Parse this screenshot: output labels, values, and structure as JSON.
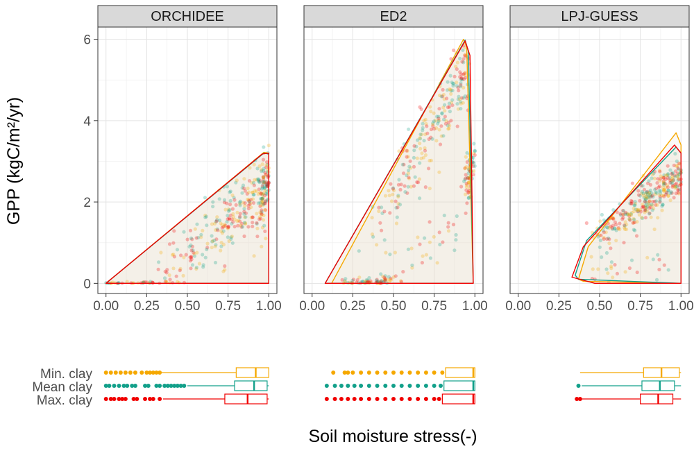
{
  "chart_data": {
    "type": "scatter",
    "ylabel": "GPP (kgC/m²/yr)",
    "xlabel": "Soil moisture stress(-)",
    "ylim": [
      -0.25,
      6.3
    ],
    "xlim": [
      -0.05,
      1.05
    ],
    "x_ticks": [
      0.0,
      0.25,
      0.5,
      0.75,
      1.0
    ],
    "x_tick_labels": [
      "0.00",
      "0.25",
      "0.50",
      "0.75",
      "1.00"
    ],
    "y_ticks": [
      0,
      2,
      4,
      6
    ],
    "y_tick_labels": [
      "0",
      "2",
      "4",
      "6"
    ],
    "grid": true,
    "series_colors": {
      "Min. clay": "#f5a800",
      "Mean clay": "#12a08a",
      "Max. clay": "#f00000"
    },
    "box_rows": [
      "Min. clay",
      "Mean clay",
      "Max. clay"
    ],
    "panels": [
      {
        "name": "ORCHIDEE",
        "hulls": {
          "Min. clay": [
            [
              0.0,
              0.0
            ],
            [
              0.97,
              3.22
            ],
            [
              1.0,
              3.2
            ],
            [
              1.0,
              0.0
            ]
          ],
          "Mean clay": [
            [
              0.0,
              0.0
            ],
            [
              0.97,
              3.2
            ],
            [
              1.0,
              3.18
            ],
            [
              1.0,
              0.0
            ]
          ],
          "Max. clay": [
            [
              0.0,
              0.0
            ],
            [
              0.96,
              3.18
            ],
            [
              1.0,
              3.2
            ],
            [
              1.0,
              0.0
            ]
          ]
        },
        "point_model": {
          "lines": [
            {
              "x0": 0.3,
              "x1": 1.0,
              "y0": 0.0,
              "y1": 2.4,
              "noise": 0.4,
              "n": 280,
              "skew": 0.55
            },
            {
              "x0": 0.95,
              "x1": 1.0,
              "y0": 1.5,
              "y1": 3.0,
              "noise": 0.3,
              "n": 70,
              "skew": 1.0
            },
            {
              "x0": 0.0,
              "x1": 0.3,
              "y0": 0.0,
              "y1": 0.02,
              "noise": 0.01,
              "n": 30,
              "skew": 1.0
            }
          ]
        },
        "boxplots": {
          "Min. clay": {
            "whisker_low": 0.34,
            "q1": 0.8,
            "median": 0.92,
            "q3": 1.0,
            "whisker_high": 1.0,
            "outliers": [
              0.0,
              0.03,
              0.06,
              0.09,
              0.12,
              0.15,
              0.18,
              0.22,
              0.25,
              0.27,
              0.29,
              0.31,
              0.33
            ]
          },
          "Mean clay": {
            "whisker_low": 0.5,
            "q1": 0.79,
            "median": 0.91,
            "q3": 0.99,
            "whisker_high": 1.0,
            "outliers": [
              0.0,
              0.02,
              0.05,
              0.08,
              0.11,
              0.13,
              0.16,
              0.18,
              0.24,
              0.26,
              0.31,
              0.33,
              0.36,
              0.38,
              0.4,
              0.42,
              0.44,
              0.46,
              0.48
            ]
          },
          "Max. clay": {
            "whisker_low": 0.35,
            "q1": 0.73,
            "median": 0.87,
            "q3": 0.99,
            "whisker_high": 1.0,
            "outliers": [
              0.0,
              0.03,
              0.05,
              0.08,
              0.1,
              0.12,
              0.17,
              0.19,
              0.24,
              0.27,
              0.29,
              0.33
            ]
          }
        }
      },
      {
        "name": "ED2",
        "hulls": {
          "Min. clay": [
            [
              0.12,
              0.0
            ],
            [
              0.93,
              6.0
            ],
            [
              0.95,
              5.8
            ],
            [
              0.99,
              0.0
            ]
          ],
          "Mean clay": [
            [
              0.08,
              0.0
            ],
            [
              0.94,
              5.98
            ],
            [
              0.96,
              5.7
            ],
            [
              0.99,
              0.0
            ]
          ],
          "Max. clay": [
            [
              0.08,
              0.0
            ],
            [
              0.94,
              5.96
            ],
            [
              0.97,
              5.6
            ],
            [
              0.99,
              0.0
            ]
          ]
        },
        "point_model": {
          "lines": [
            {
              "x0": 0.25,
              "x1": 0.96,
              "y0": 0.4,
              "y1": 5.2,
              "noise": 0.45,
              "n": 240,
              "skew": 0.5
            },
            {
              "x0": 0.95,
              "x1": 0.99,
              "y0": 2.2,
              "y1": 3.2,
              "noise": 0.2,
              "n": 80,
              "skew": 1.0
            },
            {
              "x0": 0.2,
              "x1": 0.5,
              "y0": 0.0,
              "y1": 0.1,
              "noise": 0.05,
              "n": 60,
              "skew": 1.0
            },
            {
              "x0": 0.4,
              "x1": 0.9,
              "y0": 0.1,
              "y1": 1.2,
              "noise": 0.35,
              "n": 40,
              "skew": 1.0
            }
          ]
        },
        "boxplots": {
          "Min. clay": {
            "whisker_low": 0.82,
            "q1": 0.82,
            "median": 0.99,
            "q3": 1.0,
            "whisker_high": 1.0,
            "outliers": [
              0.13,
              0.2,
              0.22,
              0.25,
              0.3,
              0.35,
              0.4,
              0.45,
              0.5,
              0.55,
              0.6,
              0.65,
              0.7,
              0.75,
              0.8
            ]
          },
          "Mean clay": {
            "whisker_low": 0.81,
            "q1": 0.81,
            "median": 0.99,
            "q3": 1.0,
            "whisker_high": 1.0,
            "outliers": [
              0.09,
              0.14,
              0.18,
              0.22,
              0.26,
              0.3,
              0.35,
              0.4,
              0.45,
              0.5,
              0.55,
              0.6,
              0.65,
              0.7,
              0.75,
              0.79
            ]
          },
          "Max. clay": {
            "whisker_low": 0.8,
            "q1": 0.8,
            "median": 0.99,
            "q3": 1.0,
            "whisker_high": 1.0,
            "outliers": [
              0.09,
              0.14,
              0.18,
              0.22,
              0.26,
              0.3,
              0.35,
              0.4,
              0.45,
              0.5,
              0.55,
              0.6,
              0.65,
              0.7,
              0.75,
              0.78
            ]
          }
        }
      },
      {
        "name": "LPJ-GUESS",
        "hulls": {
          "Min. clay": [
            [
              0.37,
              0.1
            ],
            [
              0.43,
              0.9
            ],
            [
              0.97,
              3.7
            ],
            [
              1.0,
              3.4
            ],
            [
              1.0,
              0.0
            ],
            [
              0.4,
              0.05
            ]
          ],
          "Mean clay": [
            [
              0.35,
              0.2
            ],
            [
              0.42,
              1.05
            ],
            [
              0.97,
              3.35
            ],
            [
              1.0,
              3.2
            ],
            [
              1.0,
              0.0
            ],
            [
              0.37,
              0.1
            ]
          ],
          "Max. clay": [
            [
              0.33,
              0.15
            ],
            [
              0.4,
              0.9
            ],
            [
              0.96,
              3.4
            ],
            [
              1.0,
              3.2
            ],
            [
              1.0,
              0.0
            ],
            [
              0.47,
              0.0
            ]
          ]
        },
        "point_model": {
          "lines": [
            {
              "x0": 0.43,
              "x1": 1.0,
              "y0": 1.0,
              "y1": 2.6,
              "noise": 0.25,
              "n": 330,
              "skew": 0.6
            },
            {
              "x0": 0.4,
              "x1": 0.95,
              "y0": 0.2,
              "y1": 0.5,
              "noise": 0.2,
              "n": 25,
              "skew": 1.0
            }
          ]
        },
        "boxplots": {
          "Min. clay": {
            "whisker_low": 0.38,
            "q1": 0.77,
            "median": 0.88,
            "q3": 0.99,
            "whisker_high": 1.0,
            "outliers": []
          },
          "Mean clay": {
            "whisker_low": 0.39,
            "q1": 0.76,
            "median": 0.87,
            "q3": 0.96,
            "whisker_high": 1.0,
            "outliers": [
              0.37
            ]
          },
          "Max. clay": {
            "whisker_low": 0.39,
            "q1": 0.75,
            "median": 0.86,
            "q3": 0.95,
            "whisker_high": 1.0,
            "outliers": [
              0.36,
              0.38
            ]
          }
        }
      }
    ]
  }
}
